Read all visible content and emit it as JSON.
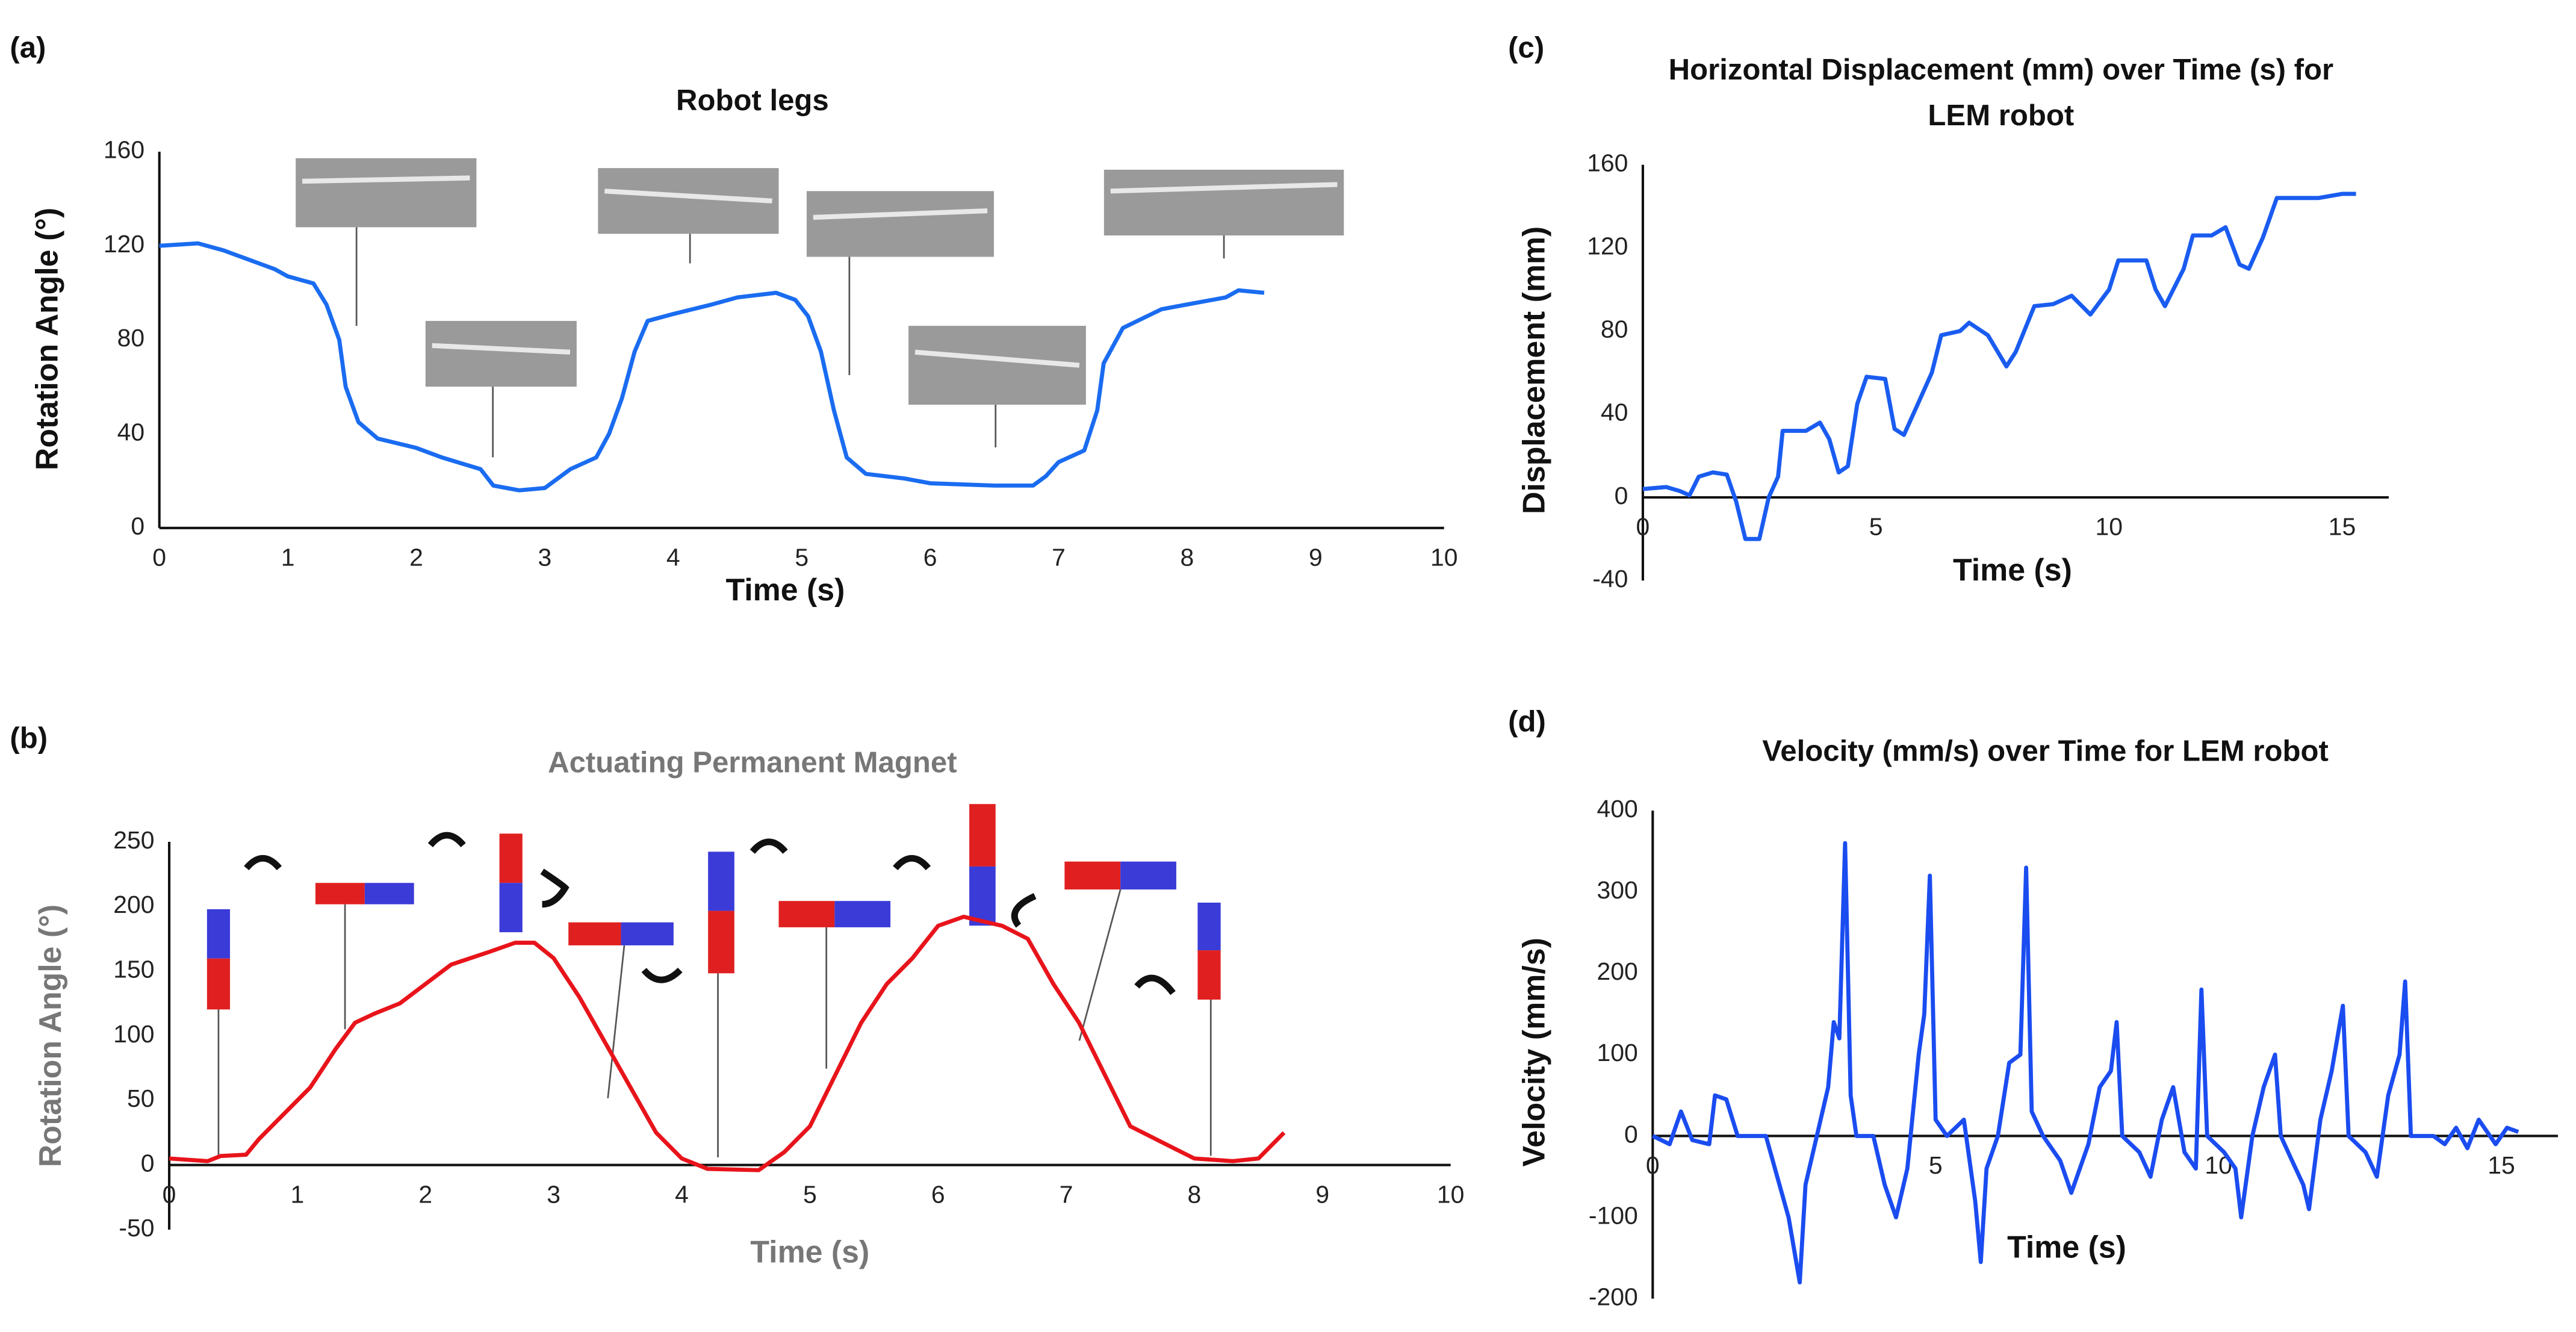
{
  "chart_data": [
    {
      "type": "line",
      "label": "(a)",
      "title": "Robot legs",
      "x_label": "Time (s)",
      "y_label": "Rotation Angle (°)",
      "color": "#1a6cf0",
      "xlim": [
        0,
        10
      ],
      "xticks": [
        0,
        1,
        2,
        3,
        4,
        5,
        6,
        7,
        8,
        9,
        10
      ],
      "ylim": [
        0,
        160
      ],
      "yticks": [
        0,
        40,
        80,
        120,
        160
      ],
      "grid": false,
      "x": [
        0,
        0.3,
        0.5,
        0.7,
        0.9,
        1.0,
        1.2,
        1.3,
        1.4,
        1.45,
        1.55,
        1.7,
        2.0,
        2.2,
        2.5,
        2.6,
        2.8,
        3.0,
        3.2,
        3.4,
        3.5,
        3.6,
        3.7,
        3.8,
        4.0,
        4.3,
        4.5,
        4.8,
        4.95,
        5.05,
        5.15,
        5.25,
        5.35,
        5.5,
        5.8,
        6.0,
        6.5,
        6.8,
        6.9,
        7.0,
        7.2,
        7.3,
        7.35,
        7.5,
        7.8,
        8.0,
        8.3,
        8.4,
        8.6
      ],
      "values": [
        120,
        121,
        118,
        114,
        110,
        107,
        104,
        95,
        80,
        60,
        45,
        38,
        34,
        30,
        25,
        18,
        16,
        17,
        25,
        30,
        40,
        55,
        75,
        88,
        91,
        95,
        98,
        100,
        97,
        90,
        75,
        50,
        30,
        23,
        21,
        19,
        18,
        18,
        22,
        28,
        33,
        50,
        70,
        85,
        93,
        95,
        98,
        101,
        100
      ]
    },
    {
      "type": "line",
      "label": "(b)",
      "title": "Actuating Permanent Magnet",
      "x_label": "Time (s)",
      "y_label": "Rotation Angle (°)",
      "color": "#e8141b",
      "xlim": [
        0,
        10
      ],
      "xticks": [
        0,
        1,
        2,
        3,
        4,
        5,
        6,
        7,
        8,
        9,
        10
      ],
      "ylim": [
        -50,
        250
      ],
      "yticks": [
        -50,
        0,
        50,
        100,
        150,
        200,
        250
      ],
      "grid": false,
      "x": [
        0,
        0.3,
        0.4,
        0.6,
        0.7,
        0.9,
        1.1,
        1.3,
        1.45,
        1.6,
        1.8,
        2.0,
        2.2,
        2.5,
        2.7,
        2.85,
        3.0,
        3.2,
        3.4,
        3.6,
        3.8,
        4.0,
        4.2,
        4.6,
        4.8,
        5.0,
        5.2,
        5.4,
        5.6,
        5.8,
        6.0,
        6.2,
        6.5,
        6.7,
        6.9,
        7.1,
        7.3,
        7.5,
        7.8,
        8.0,
        8.3,
        8.5,
        8.7
      ],
      "values": [
        5,
        3,
        7,
        8,
        20,
        40,
        60,
        90,
        110,
        117,
        125,
        140,
        155,
        165,
        172,
        172,
        160,
        130,
        95,
        60,
        25,
        5,
        -3,
        -4,
        10,
        30,
        70,
        110,
        140,
        160,
        185,
        192,
        185,
        175,
        140,
        110,
        70,
        30,
        15,
        5,
        3,
        5,
        25
      ]
    },
    {
      "type": "line",
      "label": "(c)",
      "title": "Horizontal Displacement (mm) over Time (s) for LEM robot",
      "x_label": "Time (s)",
      "y_label": "Displacement (mm)",
      "color": "#1a5cf0",
      "xlim": [
        0,
        16
      ],
      "xticks": [
        0,
        5,
        10,
        15
      ],
      "ylim": [
        -40,
        160
      ],
      "yticks": [
        -40,
        0,
        40,
        80,
        120,
        160
      ],
      "grid": false,
      "x": [
        0,
        0.5,
        0.8,
        1.0,
        1.2,
        1.5,
        1.8,
        2.0,
        2.2,
        2.5,
        2.7,
        2.9,
        3.0,
        3.5,
        3.8,
        4.0,
        4.2,
        4.4,
        4.6,
        4.8,
        5.2,
        5.4,
        5.6,
        5.9,
        6.2,
        6.4,
        6.8,
        7.0,
        7.4,
        7.8,
        8.0,
        8.4,
        8.8,
        9.2,
        9.6,
        10.0,
        10.2,
        10.8,
        11.0,
        11.2,
        11.6,
        11.8,
        12.2,
        12.5,
        12.8,
        13.0,
        13.3,
        13.6,
        14.0,
        14.5,
        15.0,
        15.3
      ],
      "values": [
        4,
        5,
        3,
        1,
        10,
        12,
        11,
        -2,
        -20,
        -20,
        0,
        10,
        32,
        32,
        36,
        28,
        12,
        15,
        45,
        58,
        57,
        33,
        30,
        45,
        60,
        78,
        80,
        84,
        78,
        63,
        70,
        92,
        93,
        97,
        88,
        100,
        114,
        114,
        100,
        92,
        110,
        126,
        126,
        130,
        112,
        110,
        125,
        144,
        144,
        144,
        146,
        146
      ]
    },
    {
      "type": "line",
      "label": "(d)",
      "title": "Velocity (mm/s) over Time for LEM robot",
      "x_label": "Time (s)",
      "y_label": "Velocity (mm/s)",
      "color": "#1a4cf0",
      "xlim": [
        0,
        16
      ],
      "xticks": [
        0,
        5,
        10,
        15
      ],
      "ylim": [
        -200,
        400
      ],
      "yticks": [
        -200,
        -100,
        0,
        100,
        200,
        300,
        400
      ],
      "grid": false,
      "x": [
        0,
        0.3,
        0.5,
        0.7,
        1.0,
        1.1,
        1.3,
        1.5,
        2.0,
        2.2,
        2.4,
        2.6,
        2.7,
        2.9,
        3.1,
        3.2,
        3.3,
        3.4,
        3.5,
        3.6,
        3.9,
        4.1,
        4.3,
        4.5,
        4.7,
        4.8,
        4.9,
        5.0,
        5.2,
        5.5,
        5.7,
        5.8,
        5.9,
        6.1,
        6.3,
        6.5,
        6.6,
        6.7,
        6.9,
        7.2,
        7.4,
        7.7,
        7.9,
        8.1,
        8.2,
        8.3,
        8.6,
        8.8,
        9.0,
        9.2,
        9.4,
        9.6,
        9.7,
        9.8,
        10.1,
        10.3,
        10.4,
        10.6,
        10.8,
        11.0,
        11.1,
        11.3,
        11.5,
        11.6,
        11.8,
        12.0,
        12.1,
        12.2,
        12.3,
        12.6,
        12.8,
        13.0,
        13.2,
        13.3,
        13.4,
        13.8,
        14.0,
        14.2,
        14.4,
        14.6,
        14.9,
        15.1,
        15.3
      ],
      "values": [
        0,
        -10,
        30,
        -5,
        -10,
        50,
        45,
        0,
        0,
        -50,
        -100,
        -180,
        -60,
        0,
        60,
        140,
        120,
        360,
        50,
        0,
        0,
        -60,
        -100,
        -40,
        100,
        150,
        320,
        20,
        0,
        20,
        -80,
        -155,
        -40,
        0,
        90,
        100,
        330,
        30,
        0,
        -30,
        -70,
        -10,
        60,
        80,
        140,
        0,
        -20,
        -50,
        20,
        60,
        -20,
        -40,
        180,
        0,
        -20,
        -40,
        -100,
        0,
        60,
        100,
        0,
        -30,
        -60,
        -90,
        20,
        80,
        120,
        160,
        0,
        -20,
        -50,
        50,
        100,
        190,
        0,
        0,
        -10,
        10,
        -15,
        20,
        -10,
        10,
        5
      ]
    }
  ]
}
